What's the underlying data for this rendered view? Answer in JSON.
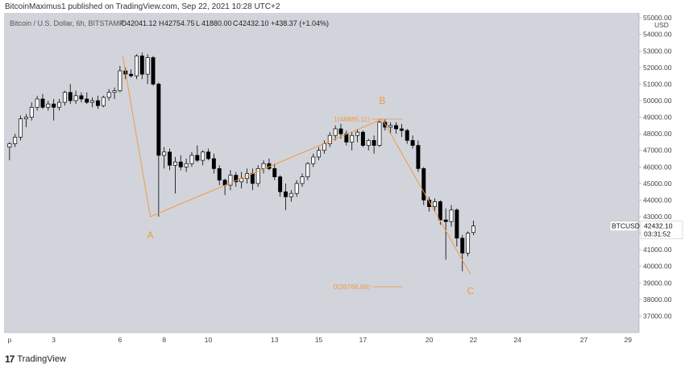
{
  "header": {
    "publish_line": "BitcoinMaximus1 published on TradingView.com, Sep 22, 2021 10:28 UTC+2"
  },
  "legend": {
    "symbol_line": "Bitcoin / U.S. Dollar, 6h, BITSTAMP",
    "open_label": "O",
    "open": "42041.12",
    "high_label": "H",
    "high": "42754.75",
    "low_label": "L",
    "low": "41880.00",
    "close_label": "C",
    "close": "42432.10",
    "change": "+438.37 (+1.04%)"
  },
  "price_tag": {
    "symbol": "BTCUSD",
    "price": "42432.10",
    "countdown": "03:31:52"
  },
  "footer": {
    "logo_mark": "17",
    "logo_text": "TradingView"
  },
  "colors": {
    "plot_bg": "#d2d4dc",
    "up": "#ffffff",
    "down": "#000000",
    "wick": "#000000",
    "wave": "#f09a43",
    "price_tag_bg": "#ffffff"
  },
  "chart_data": {
    "type": "candlestick",
    "y_unit": "USD",
    "ylim": [
      36000,
      55300
    ],
    "yticks": [
      37000,
      38000,
      39000,
      40000,
      41000,
      42000,
      43000,
      44000,
      45000,
      46000,
      47000,
      48000,
      49000,
      50000,
      51000,
      52000,
      53000,
      54000,
      55000
    ],
    "ytick_labels": [
      "37000.00",
      "38000.00",
      "39000.00",
      "40000.00",
      "41000.00",
      "42000.00",
      "43000.00",
      "44000.00",
      "45000.00",
      "46000.00",
      "47000.00",
      "48000.00",
      "49000.00",
      "50000.00",
      "51000.00",
      "52000.00",
      "53000.00",
      "54000.00",
      "55000.00"
    ],
    "xlim": [
      0.75,
      29.5
    ],
    "xticks": [
      {
        "x": 1,
        "label": "p"
      },
      {
        "x": 3,
        "label": "3"
      },
      {
        "x": 6,
        "label": "6"
      },
      {
        "x": 8,
        "label": "8"
      },
      {
        "x": 10,
        "label": "10"
      },
      {
        "x": 13,
        "label": "13"
      },
      {
        "x": 15,
        "label": "15"
      },
      {
        "x": 17,
        "label": "17"
      },
      {
        "x": 20,
        "label": "20"
      },
      {
        "x": 22,
        "label": "22"
      },
      {
        "x": 24,
        "label": "24"
      },
      {
        "x": 27,
        "label": "27"
      },
      {
        "x": 29,
        "label": "29"
      }
    ],
    "x_units": "day of September 2021 (6h candles)",
    "candles": [
      {
        "o": 47200,
        "h": 47500,
        "l": 46400,
        "c": 47400
      },
      {
        "o": 47400,
        "h": 48000,
        "l": 47200,
        "c": 47800
      },
      {
        "o": 47800,
        "h": 49100,
        "l": 47600,
        "c": 48900
      },
      {
        "o": 48900,
        "h": 49200,
        "l": 48400,
        "c": 49000
      },
      {
        "o": 49000,
        "h": 49900,
        "l": 48800,
        "c": 49600
      },
      {
        "o": 49600,
        "h": 50300,
        "l": 49400,
        "c": 50100
      },
      {
        "o": 50100,
        "h": 50400,
        "l": 49500,
        "c": 49600
      },
      {
        "o": 49600,
        "h": 50000,
        "l": 49400,
        "c": 49800
      },
      {
        "o": 49800,
        "h": 50100,
        "l": 48800,
        "c": 49600
      },
      {
        "o": 49600,
        "h": 50100,
        "l": 49400,
        "c": 49900
      },
      {
        "o": 49900,
        "h": 50600,
        "l": 49700,
        "c": 50500
      },
      {
        "o": 50500,
        "h": 51000,
        "l": 49800,
        "c": 50000
      },
      {
        "o": 50000,
        "h": 50600,
        "l": 49800,
        "c": 50300
      },
      {
        "o": 50300,
        "h": 50500,
        "l": 49900,
        "c": 50100
      },
      {
        "o": 50100,
        "h": 50500,
        "l": 49800,
        "c": 49900
      },
      {
        "o": 49900,
        "h": 50200,
        "l": 49600,
        "c": 50000
      },
      {
        "o": 50000,
        "h": 50300,
        "l": 49500,
        "c": 49700
      },
      {
        "o": 49700,
        "h": 50300,
        "l": 49600,
        "c": 50200
      },
      {
        "o": 50200,
        "h": 50700,
        "l": 50000,
        "c": 50500
      },
      {
        "o": 50500,
        "h": 50800,
        "l": 50100,
        "c": 50600
      },
      {
        "o": 50600,
        "h": 52100,
        "l": 50500,
        "c": 51800
      },
      {
        "o": 51800,
        "h": 52000,
        "l": 51300,
        "c": 51600
      },
      {
        "o": 51600,
        "h": 51900,
        "l": 51400,
        "c": 51500
      },
      {
        "o": 51500,
        "h": 52800,
        "l": 51300,
        "c": 52700
      },
      {
        "o": 52700,
        "h": 52900,
        "l": 51300,
        "c": 51600
      },
      {
        "o": 51600,
        "h": 52800,
        "l": 51000,
        "c": 52600
      },
      {
        "o": 52600,
        "h": 52700,
        "l": 50900,
        "c": 51000
      },
      {
        "o": 51000,
        "h": 51100,
        "l": 43000,
        "c": 46700
      },
      {
        "o": 46700,
        "h": 47200,
        "l": 45900,
        "c": 46900
      },
      {
        "o": 46900,
        "h": 47100,
        "l": 45800,
        "c": 46100
      },
      {
        "o": 46100,
        "h": 46600,
        "l": 44400,
        "c": 46300
      },
      {
        "o": 46300,
        "h": 46700,
        "l": 45800,
        "c": 46000
      },
      {
        "o": 46000,
        "h": 46500,
        "l": 45700,
        "c": 46200
      },
      {
        "o": 46200,
        "h": 46900,
        "l": 46000,
        "c": 46700
      },
      {
        "o": 46700,
        "h": 47300,
        "l": 46300,
        "c": 46400
      },
      {
        "o": 46400,
        "h": 47000,
        "l": 46100,
        "c": 46900
      },
      {
        "o": 46900,
        "h": 47100,
        "l": 46400,
        "c": 46500
      },
      {
        "o": 46500,
        "h": 46800,
        "l": 45600,
        "c": 45900
      },
      {
        "o": 45900,
        "h": 46100,
        "l": 44900,
        "c": 45200
      },
      {
        "o": 45200,
        "h": 45300,
        "l": 44300,
        "c": 44900
      },
      {
        "o": 44900,
        "h": 45800,
        "l": 44600,
        "c": 45500
      },
      {
        "o": 45500,
        "h": 45700,
        "l": 44800,
        "c": 45100
      },
      {
        "o": 45100,
        "h": 45700,
        "l": 44700,
        "c": 45300
      },
      {
        "o": 45300,
        "h": 45900,
        "l": 45000,
        "c": 45600
      },
      {
        "o": 45600,
        "h": 45900,
        "l": 44600,
        "c": 45000
      },
      {
        "o": 45000,
        "h": 46100,
        "l": 44800,
        "c": 45900
      },
      {
        "o": 45900,
        "h": 46400,
        "l": 45600,
        "c": 46200
      },
      {
        "o": 46200,
        "h": 46500,
        "l": 45800,
        "c": 45900
      },
      {
        "o": 45900,
        "h": 46200,
        "l": 45200,
        "c": 45400
      },
      {
        "o": 45400,
        "h": 45500,
        "l": 44200,
        "c": 44500
      },
      {
        "o": 44500,
        "h": 45000,
        "l": 43400,
        "c": 44200
      },
      {
        "o": 44200,
        "h": 44600,
        "l": 43900,
        "c": 44400
      },
      {
        "o": 44400,
        "h": 45200,
        "l": 44200,
        "c": 45000
      },
      {
        "o": 45000,
        "h": 45600,
        "l": 44800,
        "c": 45400
      },
      {
        "o": 45400,
        "h": 46300,
        "l": 45200,
        "c": 46200
      },
      {
        "o": 46200,
        "h": 46800,
        "l": 46000,
        "c": 46600
      },
      {
        "o": 46600,
        "h": 47200,
        "l": 46400,
        "c": 47000
      },
      {
        "o": 47000,
        "h": 47600,
        "l": 46800,
        "c": 47400
      },
      {
        "o": 47400,
        "h": 48100,
        "l": 47200,
        "c": 47900
      },
      {
        "o": 47900,
        "h": 48500,
        "l": 47600,
        "c": 48300
      },
      {
        "o": 48300,
        "h": 48600,
        "l": 47700,
        "c": 48000
      },
      {
        "o": 48000,
        "h": 48200,
        "l": 47300,
        "c": 47500
      },
      {
        "o": 47500,
        "h": 48100,
        "l": 47000,
        "c": 47900
      },
      {
        "o": 47900,
        "h": 48300,
        "l": 47500,
        "c": 48100
      },
      {
        "o": 48100,
        "h": 48200,
        "l": 47200,
        "c": 47300
      },
      {
        "o": 47300,
        "h": 47700,
        "l": 47000,
        "c": 47600
      },
      {
        "o": 47600,
        "h": 47900,
        "l": 46800,
        "c": 47300
      },
      {
        "o": 47300,
        "h": 48900,
        "l": 47200,
        "c": 48700
      },
      {
        "o": 48700,
        "h": 48886,
        "l": 48200,
        "c": 48400
      },
      {
        "o": 48400,
        "h": 48700,
        "l": 48000,
        "c": 48500
      },
      {
        "o": 48500,
        "h": 48700,
        "l": 48000,
        "c": 48300
      },
      {
        "o": 48300,
        "h": 48600,
        "l": 47800,
        "c": 48200
      },
      {
        "o": 48200,
        "h": 48300,
        "l": 47400,
        "c": 47600
      },
      {
        "o": 47600,
        "h": 47900,
        "l": 47100,
        "c": 47300
      },
      {
        "o": 47300,
        "h": 47600,
        "l": 45700,
        "c": 45900
      },
      {
        "o": 45900,
        "h": 46000,
        "l": 43700,
        "c": 44000
      },
      {
        "o": 44000,
        "h": 44200,
        "l": 43300,
        "c": 43600
      },
      {
        "o": 43600,
        "h": 44100,
        "l": 43300,
        "c": 43900
      },
      {
        "o": 43900,
        "h": 44000,
        "l": 42500,
        "c": 42800
      },
      {
        "o": 42800,
        "h": 43500,
        "l": 40400,
        "c": 42700
      },
      {
        "o": 42700,
        "h": 43700,
        "l": 42400,
        "c": 43400
      },
      {
        "o": 43400,
        "h": 43500,
        "l": 41200,
        "c": 41700
      },
      {
        "o": 41700,
        "h": 41900,
        "l": 39700,
        "c": 40800
      },
      {
        "o": 40800,
        "h": 42100,
        "l": 40600,
        "c": 42000
      },
      {
        "o": 42041,
        "h": 42755,
        "l": 41880,
        "c": 42432
      }
    ],
    "wave_points": [
      {
        "x": 6.125,
        "y": 52700
      },
      {
        "x": 7.375,
        "y": 43000
      },
      {
        "x": 17.875,
        "y": 48886
      },
      {
        "x": 21.875,
        "y": 39500
      }
    ],
    "wave_labels": [
      {
        "text": "A",
        "x": 7.375,
        "y": 41700
      },
      {
        "text": "B",
        "x": 17.875,
        "y": 49800
      },
      {
        "text": "C",
        "x": 21.875,
        "y": 38300
      }
    ],
    "fib_levels": [
      {
        "label": "1(48885.11)",
        "price": 48885.11,
        "x_start": 17.4,
        "x_end": 18.8
      },
      {
        "label": "0(38766.68)",
        "price": 38766.68,
        "x_start": 17.4,
        "x_end": 18.8
      }
    ],
    "last_price": 42432.1
  }
}
